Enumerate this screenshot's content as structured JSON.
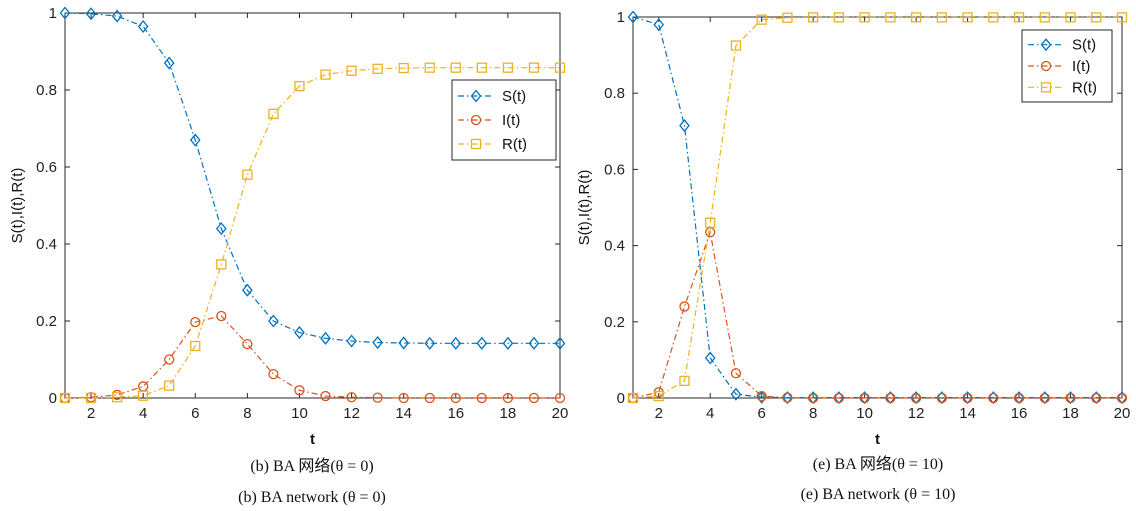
{
  "chart_data": [
    {
      "type": "line",
      "xlabel": "t",
      "ylabel": "S(t),I(t),R(t)",
      "xlim": [
        1,
        20
      ],
      "ylim": [
        0,
        1
      ],
      "xticks": [
        2,
        4,
        6,
        8,
        10,
        12,
        14,
        16,
        18,
        20
      ],
      "yticks": [
        0,
        0.2,
        0.4,
        0.6,
        0.8,
        1
      ],
      "ytick_labels": [
        "0",
        "0.2",
        "0.4",
        "0.6",
        "0.8",
        "1"
      ],
      "grid": false,
      "legend_position": "upper-right",
      "caption_cn": "(b) BA 网络(θ = 0)",
      "caption_en": "(b) BA network (θ = 0)",
      "x": [
        1,
        2,
        3,
        4,
        5,
        6,
        7,
        8,
        9,
        10,
        11,
        12,
        13,
        14,
        15,
        16,
        17,
        18,
        19,
        20
      ],
      "series": [
        {
          "name": "S(t)",
          "color": "#0072BD",
          "marker": "diamond",
          "values": [
            1.0,
            0.998,
            0.992,
            0.965,
            0.87,
            0.67,
            0.44,
            0.28,
            0.2,
            0.17,
            0.155,
            0.148,
            0.144,
            0.143,
            0.142,
            0.142,
            0.142,
            0.142,
            0.142,
            0.142
          ]
        },
        {
          "name": "I(t)",
          "color": "#D95319",
          "marker": "circle",
          "values": [
            0.0,
            0.002,
            0.008,
            0.03,
            0.1,
            0.197,
            0.213,
            0.14,
            0.062,
            0.02,
            0.005,
            0.002,
            0.001,
            0.0,
            0.0,
            0.0,
            0.0,
            0.0,
            0.0,
            0.0
          ]
        },
        {
          "name": "R(t)",
          "color": "#EDB120",
          "marker": "square",
          "values": [
            0.0,
            0.0,
            0.002,
            0.006,
            0.032,
            0.135,
            0.347,
            0.58,
            0.738,
            0.81,
            0.84,
            0.85,
            0.855,
            0.857,
            0.858,
            0.858,
            0.858,
            0.858,
            0.858,
            0.858
          ]
        }
      ]
    },
    {
      "type": "line",
      "xlabel": "t",
      "ylabel": "S(t),I(t),R(t)",
      "xlim": [
        1,
        20
      ],
      "ylim": [
        0,
        1
      ],
      "xticks": [
        2,
        4,
        6,
        8,
        10,
        12,
        14,
        16,
        18,
        20
      ],
      "yticks": [
        0,
        0.2,
        0.4,
        0.6,
        0.8,
        1
      ],
      "ytick_labels": [
        "0",
        "0.2",
        "0.4",
        "0.6",
        "0.8",
        "1"
      ],
      "grid": false,
      "legend_position": "upper-right",
      "caption_cn": "(e) BA 网络(θ = 10)",
      "caption_en": "(e) BA network (θ = 10)",
      "x": [
        1,
        2,
        3,
        4,
        5,
        6,
        7,
        8,
        9,
        10,
        11,
        12,
        13,
        14,
        15,
        16,
        17,
        18,
        19,
        20
      ],
      "series": [
        {
          "name": "S(t)",
          "color": "#0072BD",
          "marker": "diamond",
          "values": [
            1.0,
            0.98,
            0.715,
            0.105,
            0.01,
            0.002,
            0.001,
            0.001,
            0.001,
            0.001,
            0.001,
            0.001,
            0.001,
            0.001,
            0.001,
            0.001,
            0.001,
            0.001,
            0.001,
            0.001
          ]
        },
        {
          "name": "I(t)",
          "color": "#D95319",
          "marker": "circle",
          "values": [
            0.0,
            0.015,
            0.24,
            0.435,
            0.065,
            0.005,
            0.001,
            0.0,
            0.0,
            0.0,
            0.0,
            0.0,
            0.0,
            0.0,
            0.0,
            0.0,
            0.0,
            0.0,
            0.0,
            0.0
          ]
        },
        {
          "name": "R(t)",
          "color": "#EDB120",
          "marker": "square",
          "values": [
            0.0,
            0.005,
            0.045,
            0.46,
            0.925,
            0.993,
            0.998,
            0.999,
            0.999,
            0.999,
            0.999,
            0.999,
            0.999,
            0.999,
            0.999,
            0.999,
            0.999,
            0.999,
            0.999,
            0.999
          ]
        }
      ]
    }
  ]
}
